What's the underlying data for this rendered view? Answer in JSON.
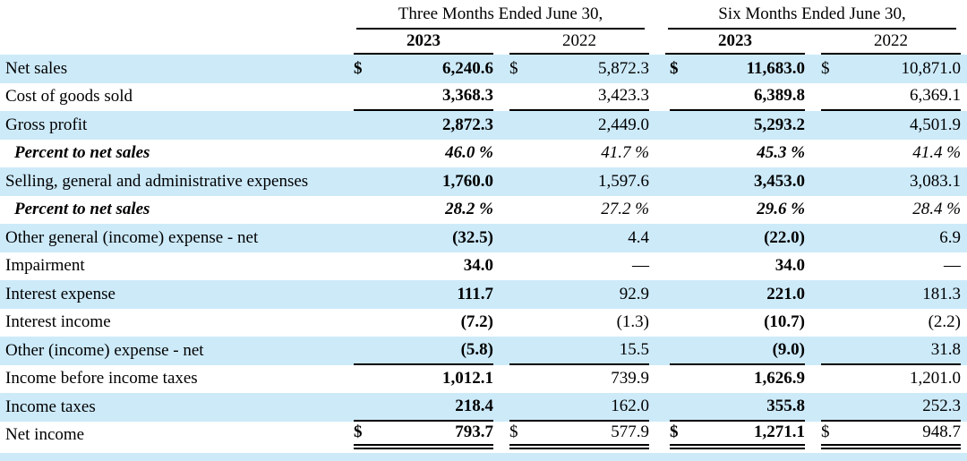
{
  "colors": {
    "row_shade": "#CDEAF9",
    "rule": "#000000",
    "text": "#000000"
  },
  "table": {
    "currency_symbol": "$",
    "col_groups": [
      {
        "label": "Three Months Ended June 30,"
      },
      {
        "label": "Six Months Ended June 30,"
      }
    ],
    "year_headers": [
      "2023",
      "2022",
      "2023",
      "2022"
    ],
    "rows": [
      {
        "label": "Net sales",
        "shade": true,
        "italic": false,
        "dollar": true,
        "rule": "none",
        "values": [
          "6,240.6",
          "5,872.3",
          "11,683.0",
          "10,871.0"
        ]
      },
      {
        "label": "Cost of goods sold",
        "shade": false,
        "italic": false,
        "dollar": false,
        "rule": "single",
        "values": [
          "3,368.3",
          "3,423.3",
          "6,389.8",
          "6,369.1"
        ]
      },
      {
        "label": "Gross profit",
        "shade": true,
        "italic": false,
        "dollar": false,
        "rule": "none",
        "values": [
          "2,872.3",
          "2,449.0",
          "5,293.2",
          "4,501.9"
        ]
      },
      {
        "label": "Percent to net sales",
        "shade": false,
        "italic": true,
        "dollar": false,
        "rule": "none",
        "values": [
          "46.0 %",
          "41.7 %",
          "45.3 %",
          "41.4 %"
        ]
      },
      {
        "label": "Selling, general and administrative expenses",
        "shade": true,
        "italic": false,
        "dollar": false,
        "rule": "none",
        "values": [
          "1,760.0",
          "1,597.6",
          "3,453.0",
          "3,083.1"
        ]
      },
      {
        "label": "Percent to net sales",
        "shade": false,
        "italic": true,
        "dollar": false,
        "rule": "none",
        "values": [
          "28.2 %",
          "27.2 %",
          "29.6 %",
          "28.4 %"
        ]
      },
      {
        "label": "Other general (income) expense - net",
        "shade": true,
        "italic": false,
        "dollar": false,
        "rule": "none",
        "values": [
          "(32.5)",
          "4.4",
          "(22.0)",
          "6.9"
        ]
      },
      {
        "label": "Impairment",
        "shade": false,
        "italic": false,
        "dollar": false,
        "rule": "none",
        "values": [
          "34.0",
          "—",
          "34.0",
          "—"
        ]
      },
      {
        "label": "Interest expense",
        "shade": true,
        "italic": false,
        "dollar": false,
        "rule": "none",
        "values": [
          "111.7",
          "92.9",
          "221.0",
          "181.3"
        ]
      },
      {
        "label": "Interest income",
        "shade": false,
        "italic": false,
        "dollar": false,
        "rule": "none",
        "values": [
          "(7.2)",
          "(1.3)",
          "(10.7)",
          "(2.2)"
        ]
      },
      {
        "label": "Other (income) expense - net",
        "shade": true,
        "italic": false,
        "dollar": false,
        "rule": "single",
        "values": [
          "(5.8)",
          "15.5",
          "(9.0)",
          "31.8"
        ]
      },
      {
        "label": "Income before income taxes",
        "shade": false,
        "italic": false,
        "dollar": false,
        "rule": "none",
        "values": [
          "1,012.1",
          "739.9",
          "1,626.9",
          "1,201.0"
        ]
      },
      {
        "label": "Income taxes",
        "shade": true,
        "italic": false,
        "dollar": false,
        "rule": "single",
        "values": [
          "218.4",
          "162.0",
          "355.8",
          "252.3"
        ]
      },
      {
        "label": "Net income",
        "shade": false,
        "italic": false,
        "dollar": true,
        "rule": "double",
        "values": [
          "793.7",
          "577.9",
          "1,271.1",
          "948.7"
        ]
      }
    ]
  }
}
